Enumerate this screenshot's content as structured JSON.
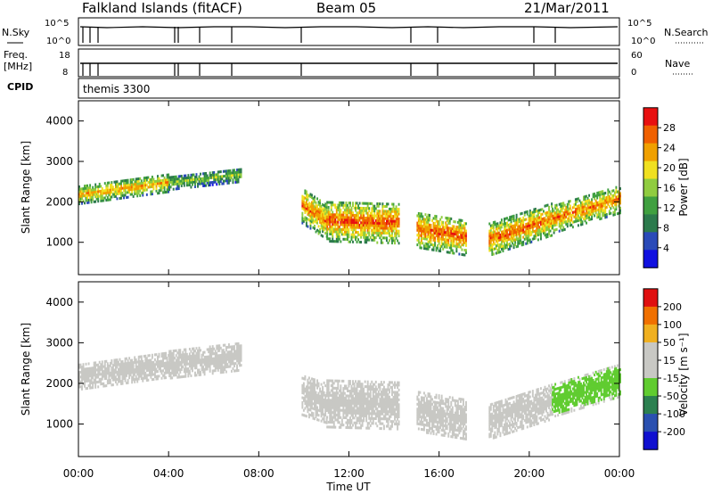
{
  "header": {
    "title": "Falkland Islands (fitACF)",
    "beam": "Beam 05",
    "date": "21/Mar/2011"
  },
  "ancillary": {
    "nsky_label": "N.Sky",
    "nsky_ticks": [
      "10^5",
      "10^0"
    ],
    "nsearch_label": "N.Search",
    "nsearch_ticks": [
      "10^5",
      "10^0"
    ],
    "freq_label": "Freq.",
    "freq_unit": "[MHz]",
    "freq_ticks": [
      "18",
      "8"
    ],
    "nave_label": "Nave",
    "nave_ticks": [
      "60",
      "0"
    ],
    "cpid_label": "CPID",
    "cpid_value": "themis 3300"
  },
  "x_axis": {
    "label": "Time UT",
    "ticks": [
      "00:00",
      "04:00",
      "08:00",
      "12:00",
      "16:00",
      "20:00",
      "00:00"
    ]
  },
  "colors": {
    "power_scale": [
      "#1010e0",
      "#2a4ab8",
      "#2c7a4c",
      "#40a040",
      "#90cc40",
      "#f0e020",
      "#f0a000",
      "#f06000",
      "#e81010"
    ],
    "velocity_scale": [
      "#1010d0",
      "#2a50b0",
      "#2c8050",
      "#60cc30",
      "#c8c8c4",
      "#c8c8c4",
      "#f0b020",
      "#f07000",
      "#e01010"
    ]
  },
  "chart_data": [
    {
      "type": "heatmap",
      "ylabel": "Slant Range [km]",
      "yticks": [
        1000,
        2000,
        3000,
        4000
      ],
      "ylim": [
        200,
        4500
      ],
      "xlim_hours": [
        0,
        24
      ],
      "colorbar": {
        "label": "Power [dB]",
        "ticks": [
          "4",
          "8",
          "12",
          "16",
          "20",
          "24",
          "28"
        ],
        "range": [
          0,
          30
        ]
      },
      "bands": [
        {
          "t": [
            0.0,
            4.0
          ],
          "r_center": [
            2150,
            2450
          ],
          "width": 450,
          "value": 22
        },
        {
          "t": [
            4.0,
            7.2
          ],
          "r_center": [
            2450,
            2650
          ],
          "width": 350,
          "value": 14
        },
        {
          "t": [
            9.9,
            11.0
          ],
          "r_center": [
            1900,
            1500
          ],
          "width": 900,
          "value": 24
        },
        {
          "t": [
            11.0,
            14.2
          ],
          "r_center": [
            1500,
            1450
          ],
          "width": 1000,
          "value": 26
        },
        {
          "t": [
            15.0,
            17.2
          ],
          "r_center": [
            1300,
            1100
          ],
          "width": 900,
          "value": 26
        },
        {
          "t": [
            18.2,
            21.0
          ],
          "r_center": [
            1050,
            1550
          ],
          "width": 800,
          "value": 25
        },
        {
          "t": [
            21.0,
            24.0
          ],
          "r_center": [
            1550,
            2050
          ],
          "width": 700,
          "value": 24
        }
      ]
    },
    {
      "type": "heatmap",
      "ylabel": "Slant Range [km]",
      "yticks": [
        1000,
        2000,
        3000,
        4000
      ],
      "ylim": [
        200,
        4500
      ],
      "xlim_hours": [
        0,
        24
      ],
      "colorbar": {
        "label": "Velocity [m s⁻¹]",
        "ticks": [
          "200",
          "100",
          "50",
          "15",
          "-15",
          "-50",
          "-100",
          "-200"
        ],
        "range": [
          -250,
          250
        ]
      },
      "bands": [
        {
          "t": [
            0.0,
            4.0
          ],
          "r_center": [
            2150,
            2450
          ],
          "width": 650,
          "value": 0
        },
        {
          "t": [
            4.0,
            7.2
          ],
          "r_center": [
            2450,
            2650
          ],
          "width": 700,
          "value": 0
        },
        {
          "t": [
            9.9,
            11.0
          ],
          "r_center": [
            1700,
            1500
          ],
          "width": 1000,
          "value": 40
        },
        {
          "t": [
            11.0,
            14.2
          ],
          "r_center": [
            1500,
            1450
          ],
          "width": 1200,
          "value": 0
        },
        {
          "t": [
            15.0,
            17.2
          ],
          "r_center": [
            1300,
            1100
          ],
          "width": 1000,
          "value": 0
        },
        {
          "t": [
            18.2,
            21.0
          ],
          "r_center": [
            1050,
            1550
          ],
          "width": 900,
          "value": 0
        },
        {
          "t": [
            21.0,
            24.0
          ],
          "r_center": [
            1550,
            2050
          ],
          "width": 800,
          "value": -60
        }
      ]
    }
  ]
}
